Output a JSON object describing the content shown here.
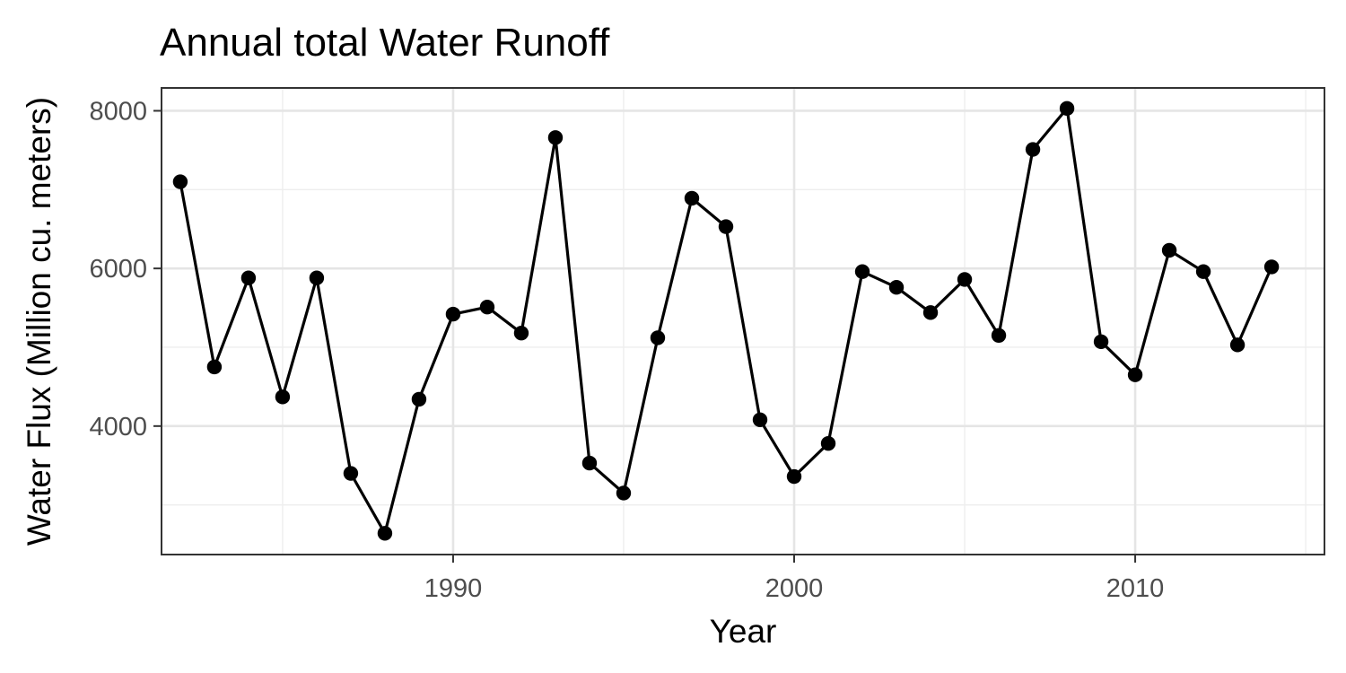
{
  "chart_data": {
    "type": "line",
    "title": "Annual total Water Runoff",
    "xlabel": "Year",
    "ylabel": "Water Flux (Million cu. meters)",
    "xlim": [
      1981.45,
      2015.55
    ],
    "ylim": [
      2370,
      8290
    ],
    "x_ticks": [
      1990,
      2000,
      2010
    ],
    "x_tick_labels": [
      "1990",
      "2000",
      "2010"
    ],
    "x_minor_ticks": [
      1985,
      1995,
      2005,
      2015
    ],
    "y_ticks": [
      4000,
      6000,
      8000
    ],
    "y_tick_labels": [
      "4000",
      "6000",
      "8000"
    ],
    "y_minor_ticks": [
      3000,
      5000,
      7000
    ],
    "grid": true,
    "legend": "none",
    "markers": true,
    "series": [
      {
        "x": [
          1982,
          1983,
          1984,
          1985,
          1986,
          1987,
          1988,
          1989,
          1990,
          1991,
          1992,
          1993,
          1994,
          1995,
          1996,
          1997,
          1998,
          1999,
          2000,
          2001,
          2002,
          2003,
          2004,
          2005,
          2006,
          2007,
          2008,
          2009,
          2010,
          2011,
          2012,
          2013,
          2014
        ],
        "values": [
          7100,
          4750,
          5880,
          4370,
          5880,
          3400,
          2640,
          4340,
          5420,
          5510,
          5180,
          7660,
          3530,
          3150,
          5120,
          6890,
          6530,
          4080,
          3360,
          3780,
          5960,
          5760,
          5440,
          5860,
          5150,
          7510,
          8030,
          5070,
          4650,
          6230,
          5960,
          5030,
          6020
        ],
        "color": "#000000"
      }
    ]
  }
}
